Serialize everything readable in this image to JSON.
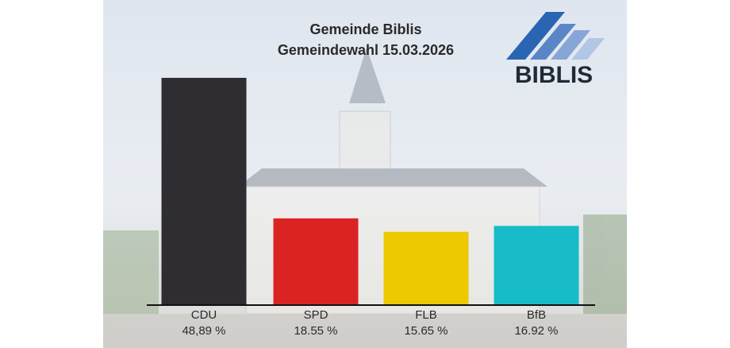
{
  "chart_data": {
    "type": "bar",
    "title": "Gemeinde Biblis",
    "subtitle": "Gemeindewahl 15.03.2026",
    "logo_text": "BIBLIS",
    "categories": [
      "CDU",
      "SPD",
      "FLB",
      "BfB"
    ],
    "values": [
      48.89,
      18.55,
      15.65,
      16.92
    ],
    "value_labels": [
      "48,89 %",
      "18.55 %",
      "15.65 %",
      "16.92 %"
    ],
    "colors": [
      "#2f2d31",
      "#dc2323",
      "#ecc900",
      "#17bcc8"
    ]
  }
}
